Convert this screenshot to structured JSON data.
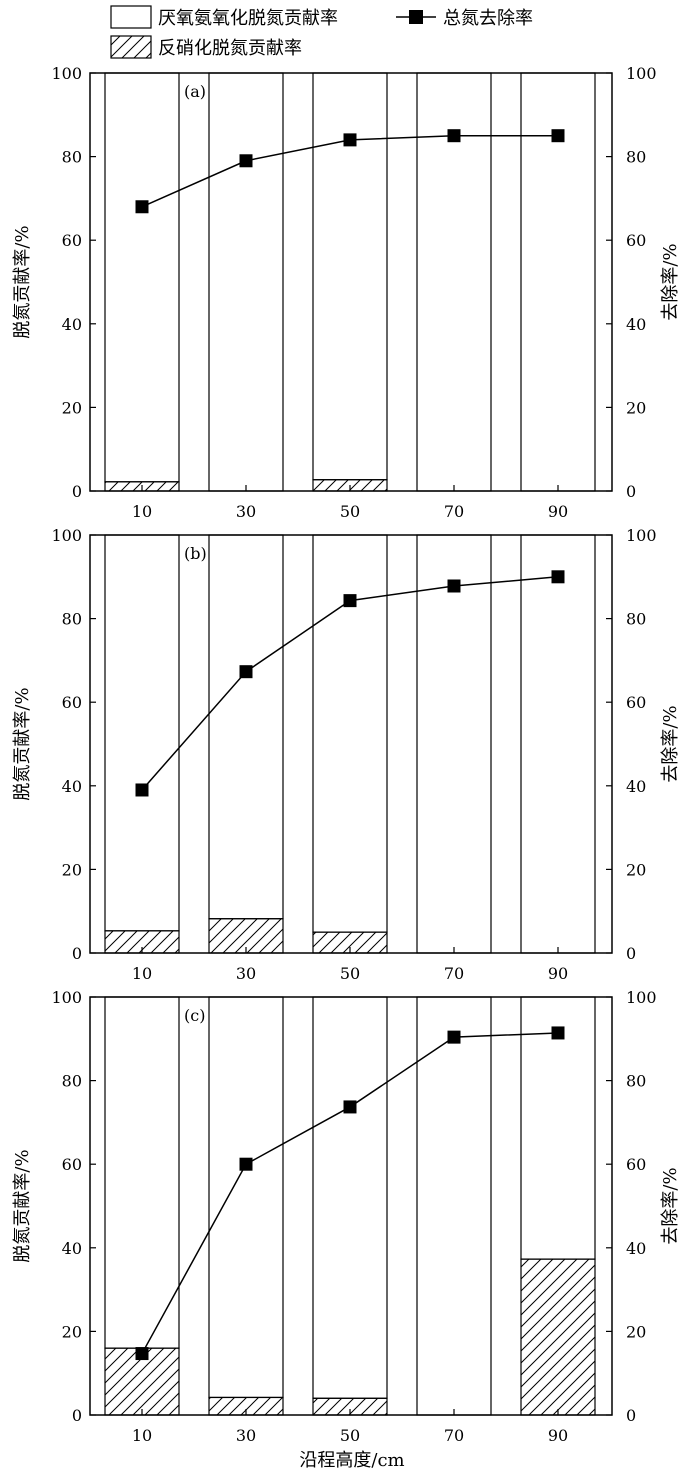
{
  "legend": {
    "anammox_label": "厌氧氨氧化脱氮贡献率",
    "denit_label": "反硝化脱氮贡献率",
    "removal_label": "总氮去除率"
  },
  "axes": {
    "xlabel": "沿程高度/cm",
    "ylabel_left": "脱氮贡献率/%",
    "ylabel_right": "去除率/%",
    "x_ticks": [
      "10",
      "30",
      "50",
      "70",
      "90"
    ],
    "y_ticks": [
      "0",
      "20",
      "40",
      "60",
      "80",
      "100"
    ]
  },
  "chart_data": [
    {
      "type": "bar",
      "panel": "(a)",
      "categories": [
        "10",
        "30",
        "50",
        "70",
        "90"
      ],
      "ylim": [
        0,
        100
      ],
      "series": [
        {
          "name": "厌氧氨氧化脱氮贡献率",
          "values": [
            97.8,
            100,
            97.3,
            100,
            100
          ],
          "stack_bottom": [
            2.2,
            0,
            2.7,
            0,
            0
          ]
        },
        {
          "name": "反硝化脱氮贡献率",
          "values": [
            2.2,
            0,
            2.7,
            0,
            0
          ]
        },
        {
          "name": "总氮去除率",
          "type": "line",
          "values": [
            68,
            79,
            84,
            85,
            85
          ]
        }
      ]
    },
    {
      "type": "bar",
      "panel": "(b)",
      "categories": [
        "10",
        "30",
        "50",
        "70",
        "90"
      ],
      "ylim": [
        0,
        100
      ],
      "series": [
        {
          "name": "厌氧氨氧化脱氮贡献率",
          "values": [
            94.7,
            91.8,
            95.0,
            100,
            100
          ],
          "stack_bottom": [
            5.3,
            8.2,
            5.0,
            0,
            0
          ]
        },
        {
          "name": "反硝化脱氮贡献率",
          "values": [
            5.3,
            8.2,
            5.0,
            0,
            0
          ]
        },
        {
          "name": "总氮去除率",
          "type": "line",
          "values": [
            39,
            67.3,
            84.3,
            87.8,
            90
          ]
        }
      ]
    },
    {
      "type": "bar",
      "panel": "(c)",
      "categories": [
        "10",
        "30",
        "50",
        "70",
        "90"
      ],
      "ylim": [
        0,
        100
      ],
      "series": [
        {
          "name": "厌氧氨氧化脱氮贡献率",
          "values": [
            84,
            95.8,
            96,
            100,
            62.7
          ],
          "stack_bottom": [
            16,
            4.2,
            4,
            0,
            37.3
          ]
        },
        {
          "name": "反硝化脱氮贡献率",
          "values": [
            16,
            4.2,
            4,
            0,
            37.3
          ]
        },
        {
          "name": "总氮去除率",
          "type": "line",
          "values": [
            14.7,
            60,
            73.7,
            90.4,
            91.4
          ]
        }
      ]
    }
  ]
}
